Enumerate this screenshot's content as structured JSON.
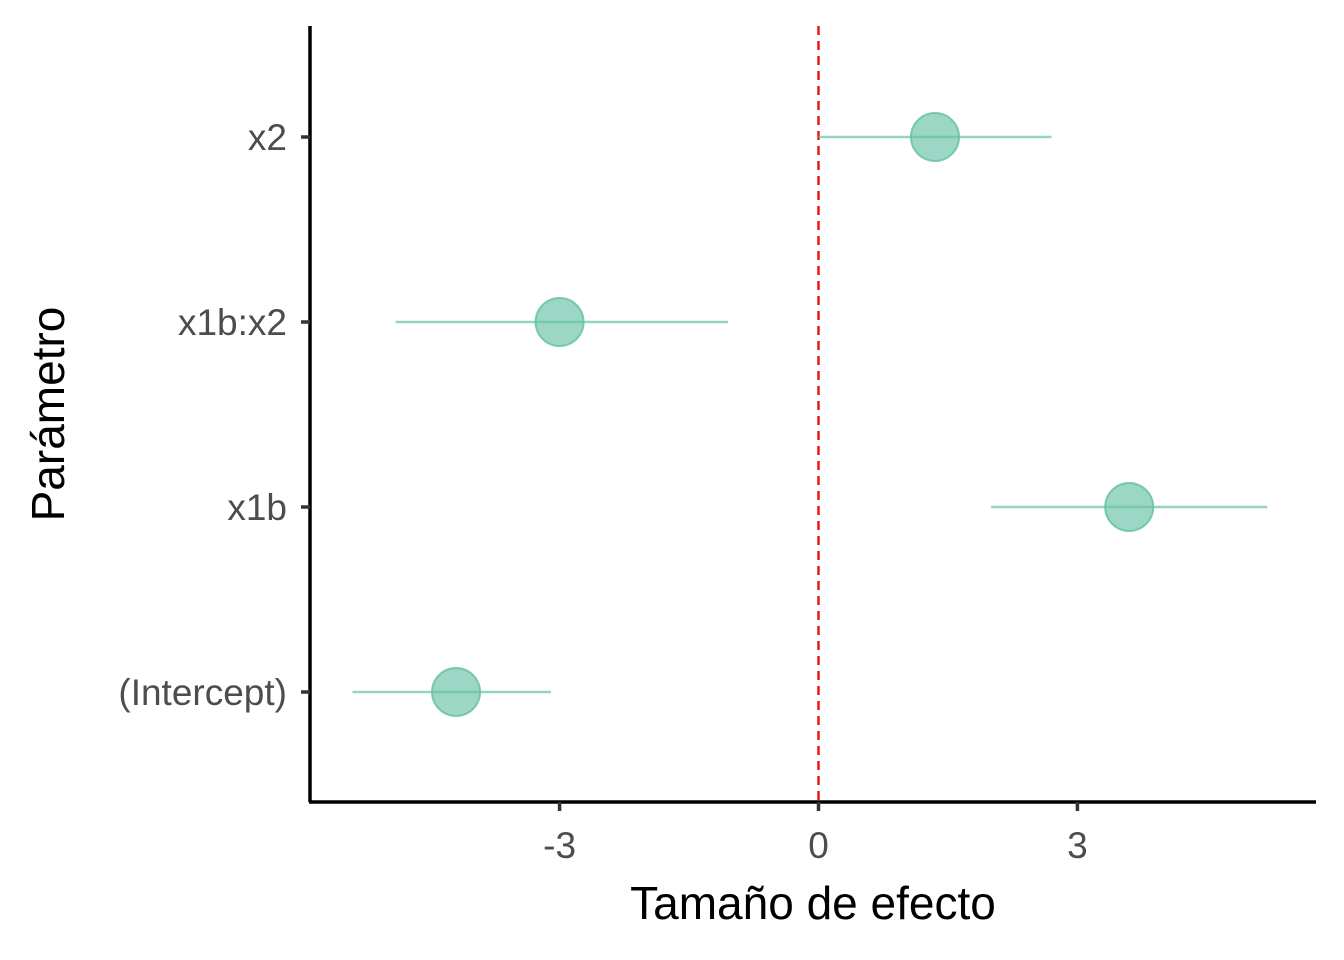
{
  "chart_data": {
    "type": "scatter",
    "subtype": "coefficient-plot",
    "title": "",
    "xlabel": "Tamaño de efecto",
    "ylabel": "Parámetro",
    "xlim": [
      -5.9,
      5.7
    ],
    "x_ticks": [
      -3,
      0,
      3
    ],
    "x_tick_labels": [
      "-3",
      "0",
      "3"
    ],
    "categories": [
      "(Intercept)",
      "x1b",
      "x1b:x2",
      "x2"
    ],
    "series": [
      {
        "estimates": [
          -4.2,
          3.6,
          -3.0,
          1.35
        ],
        "lower": [
          -5.4,
          2.0,
          -4.9,
          0.0
        ],
        "upper": [
          -3.1,
          5.2,
          -1.05,
          2.7
        ]
      }
    ],
    "reference_line": {
      "x": 0,
      "style": "dashed",
      "color": "#e41a1c"
    },
    "point_color": "#66c2a5",
    "grid": false,
    "legend": "none"
  }
}
